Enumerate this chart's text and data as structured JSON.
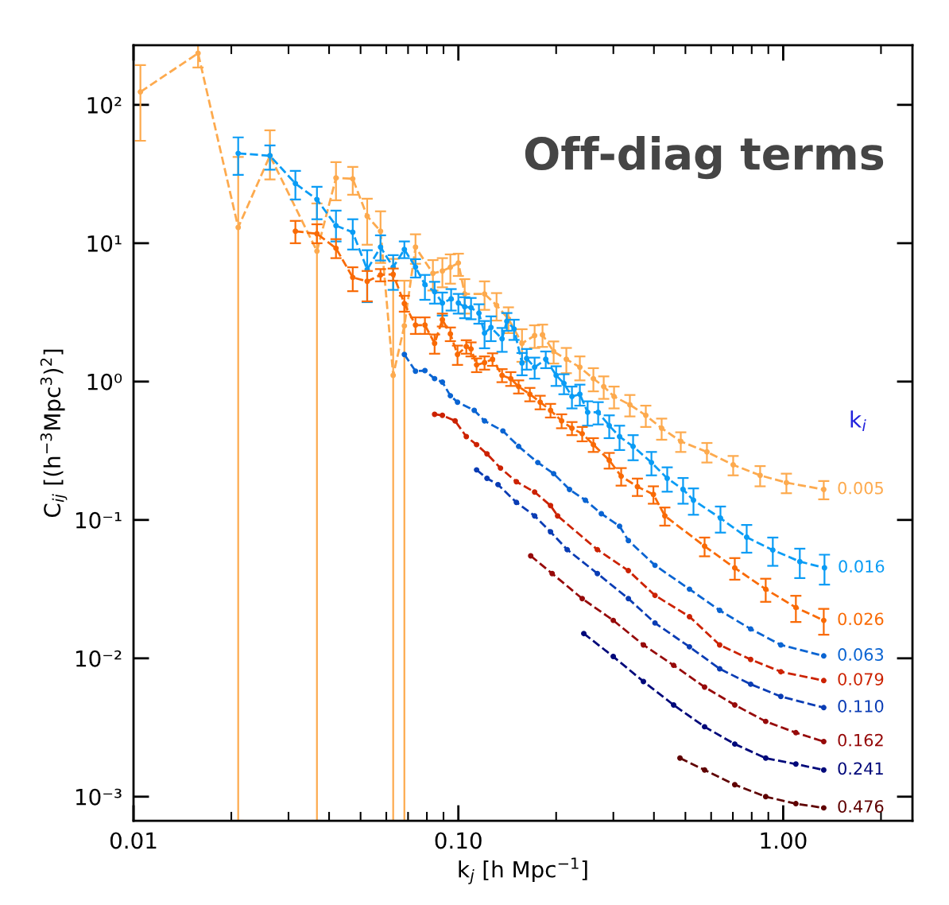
{
  "chart_data": {
    "type": "line",
    "title": "Off-diag terms",
    "xlabel": "k$_{j}$ [h Mpc$^{−1}$]",
    "ylabel": "C$_{ij}$ [(h$^{−3}$Mpc$^{3}$)$^{2}$]",
    "legend_title": "k$_{i}$",
    "log": "xy",
    "xlim": [
      0.01,
      2.5
    ],
    "ylim": [
      0.00067,
      270
    ],
    "xticks": [
      {
        "value": 0.01,
        "label": "0.01"
      },
      {
        "value": 0.1,
        "label": "0.10"
      },
      {
        "value": 1,
        "label": "1.00"
      }
    ],
    "yticks": [
      {
        "value": 0.001,
        "label": "10⁻³"
      },
      {
        "value": 0.01,
        "label": "10⁻²"
      },
      {
        "value": 0.1,
        "label": "10⁻¹"
      },
      {
        "value": 1,
        "label": "10⁰"
      },
      {
        "value": 10,
        "label": "10¹"
      },
      {
        "value": 100,
        "label": "10²"
      }
    ],
    "marker": "circle",
    "line_style": "dashed",
    "series": [
      {
        "name": "0.005",
        "color": "#fdaa4e",
        "x": [
          0.0105,
          0.0158,
          0.021,
          0.0263,
          0.0367,
          0.042,
          0.0473,
          0.0524,
          0.0576,
          0.063,
          0.0682,
          0.0738,
          0.0835,
          0.0893,
          0.0945,
          0.1,
          0.1046,
          0.1204,
          0.1311,
          0.1426,
          0.157,
          0.1717,
          0.1816,
          0.1965,
          0.215,
          0.2366,
          0.2604,
          0.2802,
          0.3015,
          0.3373,
          0.3776,
          0.4225,
          0.4838,
          0.5824,
          0.7015,
          0.8492,
          1.023,
          1.333
        ],
        "values": [
          124,
          236,
          13.0,
          42.9,
          8.76,
          29.6,
          29.2,
          15.7,
          12.2,
          1.11,
          2.53,
          9.36,
          6.05,
          6.3,
          6.7,
          7.2,
          4.3,
          4.3,
          3.56,
          2.84,
          1.89,
          2.15,
          2.18,
          1.65,
          1.45,
          1.27,
          1.05,
          0.92,
          0.78,
          0.68,
          0.57,
          0.46,
          0.37,
          0.31,
          0.25,
          0.21,
          0.186,
          0.166
        ],
        "errors": [
          [
            55,
            194
          ],
          [
            186,
            275
          ],
          [
            0.00067,
            42
          ],
          [
            28.9,
            65.4
          ],
          [
            0.00067,
            19.4
          ],
          [
            20.4,
            38.6
          ],
          [
            22.4,
            35.6
          ],
          [
            9.75,
            21.0
          ],
          [
            7.2,
            17.0
          ],
          [
            0.00067,
            7.7
          ],
          [
            0.00067,
            5.36
          ],
          [
            7.1,
            11.6
          ],
          1.5,
          1.5,
          1.6,
          [
            5.8,
            8.4
          ],
          1.2,
          1.0,
          0.8,
          0.6,
          0.5,
          0.4,
          0.4,
          0.3,
          0.3,
          0.25,
          0.2,
          0.17,
          0.14,
          0.12,
          0.1,
          0.08,
          0.06,
          0.05,
          0.04,
          0.035,
          0.03,
          0.025
        ]
      },
      {
        "name": "0.016",
        "color": "#0a9cf5",
        "x": [
          0.021,
          0.0263,
          0.0315,
          0.0367,
          0.042,
          0.0473,
          0.0524,
          0.0576,
          0.063,
          0.0682,
          0.0738,
          0.0789,
          0.0845,
          0.0893,
          0.095,
          0.1,
          0.1046,
          0.1094,
          0.1157,
          0.1204,
          0.126,
          0.1363,
          0.141,
          0.1484,
          0.157,
          0.1623,
          0.1717,
          0.1858,
          0.2,
          0.2114,
          0.2237,
          0.2366,
          0.25,
          0.2694,
          0.2914,
          0.3135,
          0.3451,
          0.393,
          0.4395,
          0.4918,
          0.5294,
          0.641,
          0.772,
          0.929,
          1.125,
          1.34
        ],
        "values": [
          44.6,
          42.9,
          27.0,
          20.7,
          13.4,
          12.0,
          6.46,
          9.36,
          6.72,
          9.0,
          6.72,
          5.02,
          4.46,
          3.7,
          3.96,
          3.7,
          3.47,
          3.42,
          3.12,
          2.24,
          2.46,
          2.04,
          2.73,
          2.4,
          1.36,
          1.47,
          1.27,
          1.45,
          1.11,
          0.97,
          0.78,
          0.81,
          0.6,
          0.6,
          0.48,
          0.4,
          0.34,
          0.26,
          0.2,
          0.166,
          0.139,
          0.103,
          0.075,
          0.0606,
          0.05,
          0.0451
        ],
        "errors": [
          [
            31.2,
            58.2
          ],
          [
            34.0,
            50.9
          ],
          [
            20.7,
            33.3
          ],
          [
            14.9,
            25.6
          ],
          [
            10.3,
            17.2
          ],
          [
            9.0,
            14.9
          ],
          [
            3.75,
            8.9
          ],
          [
            7.5,
            11.4
          ],
          [
            4.6,
            8.2
          ],
          [
            7.8,
            10.3
          ],
          [
            5.65,
            7.67
          ],
          [
            3.9,
            5.9
          ],
          0.8,
          0.7,
          0.7,
          0.6,
          0.6,
          0.6,
          0.5,
          0.5,
          0.5,
          0.4,
          0.4,
          0.4,
          0.25,
          0.25,
          0.22,
          0.2,
          0.18,
          0.16,
          0.14,
          0.14,
          0.12,
          0.11,
          0.09,
          0.08,
          0.07,
          0.05,
          0.04,
          0.035,
          0.03,
          0.022,
          0.017,
          0.014,
          0.012,
          0.011
        ]
      },
      {
        "name": "0.026",
        "color": "#f96a05",
        "x": [
          0.0315,
          0.0367,
          0.042,
          0.0473,
          0.0524,
          0.0576,
          0.063,
          0.0682,
          0.0738,
          0.0789,
          0.0845,
          0.0893,
          0.0945,
          0.0994,
          0.1058,
          0.1094,
          0.1138,
          0.1204,
          0.1274,
          0.1363,
          0.145,
          0.1533,
          0.166,
          0.1786,
          0.1922,
          0.2079,
          0.2237,
          0.2406,
          0.2604,
          0.2914,
          0.3171,
          0.3558,
          0.3985,
          0.4322,
          0.5728,
          0.7095,
          0.8834,
          1.094,
          1.333
        ],
        "values": [
          12.2,
          11.7,
          9.2,
          5.66,
          5.3,
          5.9,
          5.96,
          3.66,
          2.56,
          2.56,
          1.89,
          2.8,
          2.21,
          1.57,
          1.79,
          1.72,
          1.32,
          1.37,
          1.45,
          1.11,
          1.05,
          0.92,
          0.81,
          0.71,
          0.62,
          0.52,
          0.46,
          0.42,
          0.35,
          0.27,
          0.207,
          0.174,
          0.153,
          0.107,
          0.0646,
          0.045,
          0.0316,
          0.0233,
          0.0188
        ],
        "errors": [
          [
            10.0,
            14.5
          ],
          [
            10.0,
            13.7
          ],
          [
            7.8,
            10.7
          ],
          [
            4.5,
            6.7
          ],
          [
            3.8,
            6.3
          ],
          0.6,
          0.6,
          [
            3.2,
            4.17
          ],
          0.35,
          0.35,
          0.3,
          0.3,
          0.25,
          0.25,
          0.2,
          0.2,
          0.15,
          0.15,
          0.15,
          0.12,
          0.12,
          0.1,
          0.09,
          0.08,
          0.07,
          0.06,
          0.05,
          0.05,
          0.04,
          0.035,
          0.03,
          0.025,
          0.022,
          0.016,
          0.01,
          0.008,
          0.006,
          0.005,
          0.004
        ]
      },
      {
        "name": "0.063",
        "color": "#0a64d2",
        "x": [
          0.0682,
          0.0738,
          0.0789,
          0.0845,
          0.0893,
          0.0945,
          0.0994,
          0.1119,
          0.1204,
          0.1371,
          0.1533,
          0.1756,
          0.1965,
          0.2199,
          0.246,
          0.2755,
          0.3135,
          0.3337,
          0.403,
          0.5146,
          0.6374,
          0.794,
          0.9833,
          1.333
        ],
        "values": [
          1.57,
          1.19,
          1.2,
          1.05,
          0.99,
          0.79,
          0.71,
          0.62,
          0.52,
          0.44,
          0.34,
          0.26,
          0.216,
          0.166,
          0.139,
          0.111,
          0.09,
          0.071,
          0.047,
          0.0316,
          0.0222,
          0.0163,
          0.0125,
          0.0104
        ]
      },
      {
        "name": "0.079",
        "color": "#cc2200",
        "x": [
          0.0845,
          0.0893,
          0.0977,
          0.1058,
          0.1138,
          0.1225,
          0.1348,
          0.1509,
          0.1717,
          0.1922,
          0.2021,
          0.2679,
          0.3337,
          0.403,
          0.5146,
          0.6374,
          0.794,
          0.9833,
          1.333
        ],
        "values": [
          0.58,
          0.57,
          0.52,
          0.4,
          0.35,
          0.3,
          0.237,
          0.189,
          0.159,
          0.127,
          0.107,
          0.061,
          0.043,
          0.0285,
          0.02,
          0.0125,
          0.0098,
          0.008,
          0.0069
        ]
      },
      {
        "name": "0.110",
        "color": "#0a3cb4",
        "x": [
          0.1138,
          0.1225,
          0.1325,
          0.1509,
          0.1717,
          0.1922,
          0.2163,
          0.2679,
          0.3337,
          0.403,
          0.5146,
          0.6374,
          0.794,
          0.9833,
          1.333
        ],
        "values": [
          0.23,
          0.2,
          0.18,
          0.134,
          0.107,
          0.082,
          0.061,
          0.041,
          0.027,
          0.018,
          0.0121,
          0.0084,
          0.0065,
          0.0053,
          0.0044
        ]
      },
      {
        "name": "0.162",
        "color": "#960a0a",
        "x": [
          0.167,
          0.1944,
          0.2406,
          0.2998,
          0.3713,
          0.4599,
          0.5728,
          0.7095,
          0.8834,
          1.094,
          1.333
        ],
        "values": [
          0.055,
          0.041,
          0.027,
          0.0188,
          0.0125,
          0.0089,
          0.0062,
          0.0046,
          0.0035,
          0.0029,
          0.0025
        ]
      },
      {
        "name": "0.241",
        "color": "#00087a",
        "x": [
          0.2433,
          0.2998,
          0.3713,
          0.4599,
          0.5728,
          0.7095,
          0.8834,
          1.094,
          1.333
        ],
        "values": [
          0.0151,
          0.0103,
          0.0068,
          0.0046,
          0.0032,
          0.0024,
          0.0019,
          0.00172,
          0.00156
        ]
      },
      {
        "name": "0.476",
        "color": "#5f0000",
        "x": [
          0.4811,
          0.5728,
          0.7095,
          0.8834,
          1.094,
          1.333
        ],
        "values": [
          0.0019,
          0.00156,
          0.00122,
          0.001,
          0.00089,
          0.00083
        ]
      }
    ]
  }
}
